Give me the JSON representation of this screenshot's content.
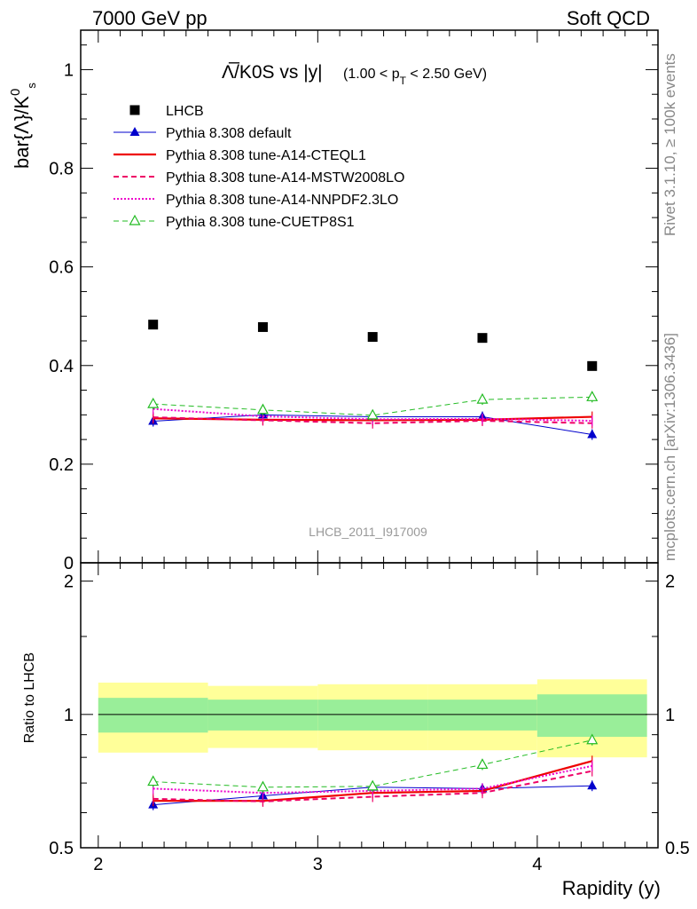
{
  "header": {
    "left": "7000 GeV pp",
    "right": "Soft QCD"
  },
  "side_labels": {
    "right_top": "Rivet 3.1.10, ≥ 100k events",
    "right_bottom": "mcplots.cern.ch [arXiv:1306.3436]"
  },
  "watermark": "LHCB_2011_I917009",
  "chart_data": {
    "type": "line",
    "title": {
      "main": "Λ̅/K0S vs |y|",
      "sub": "(1.00 < p",
      "sub_index": "T",
      "sub_tail": " < 2.50 GeV)"
    },
    "ylabel": "bar{Λ}/K",
    "ylabel_sup": "0",
    "ylabel_sub": "s",
    "xlabel": "Rapidity (y)",
    "ratio_ylabel": "Ratio to LHCB",
    "xlim": [
      1.92,
      4.55
    ],
    "ylim": [
      0,
      1.08
    ],
    "ratio_ylim": [
      0.5,
      2.2
    ],
    "x_ticks": [
      "2",
      "3",
      "4"
    ],
    "y_ticks": [
      "0",
      "0.2",
      "0.4",
      "0.6",
      "0.8",
      "1"
    ],
    "ratio_ticks": [
      "0.5",
      "1",
      "2"
    ],
    "ratio_ticks_right": [
      "0.5",
      "1",
      "2"
    ],
    "x": [
      2.25,
      2.75,
      3.25,
      3.75,
      4.25
    ],
    "bin_edges": [
      2.0,
      2.5,
      3.0,
      3.5,
      4.0,
      4.5
    ],
    "data": {
      "name": "LHCB",
      "values": [
        0.483,
        0.478,
        0.458,
        0.456,
        0.399
      ],
      "band_inner": [
        0.09,
        0.08,
        0.08,
        0.08,
        0.11
      ],
      "band_outer": [
        0.18,
        0.16,
        0.17,
        0.17,
        0.2
      ]
    },
    "series": [
      {
        "name": "Pythia 8.308 default",
        "color": "#0000cc",
        "style": "solid",
        "width": 1,
        "marker": "triangle-filled",
        "values": [
          0.287,
          0.3,
          0.296,
          0.296,
          0.26
        ],
        "ratio": [
          0.625,
          0.655,
          0.685,
          0.68,
          0.69
        ]
      },
      {
        "name": "Pythia 8.308 tune-A14-CTEQL1",
        "color": "#ee0000",
        "style": "solid",
        "width": 2.2,
        "marker": "none",
        "values": [
          0.293,
          0.29,
          0.289,
          0.29,
          0.296
        ],
        "ratio": [
          0.638,
          0.638,
          0.665,
          0.672,
          0.785
        ]
      },
      {
        "name": "Pythia 8.308 tune-A14-MSTW2008LO",
        "color": "#ee0066",
        "style": "dashed",
        "width": 2,
        "marker": "none",
        "values": [
          0.295,
          0.289,
          0.283,
          0.288,
          0.283
        ],
        "ratio": [
          0.645,
          0.636,
          0.652,
          0.665,
          0.745
        ]
      },
      {
        "name": "Pythia 8.308 tune-A14-NNPDF2.3LO",
        "color": "#ee00cc",
        "style": "dotted",
        "width": 2,
        "marker": "none",
        "values": [
          0.312,
          0.297,
          0.291,
          0.292,
          0.288
        ],
        "ratio": [
          0.68,
          0.665,
          0.672,
          0.68,
          0.765
        ]
      },
      {
        "name": "Pythia 8.308 tune-CUETP8S1",
        "color": "#22bb22",
        "style": "dashed",
        "width": 1,
        "marker": "triangle-open",
        "values": [
          0.322,
          0.31,
          0.299,
          0.331,
          0.336
        ],
        "ratio": [
          0.705,
          0.685,
          0.688,
          0.77,
          0.875
        ]
      }
    ],
    "colors": {
      "band_outer": "#ffff99",
      "band_inner": "#99ee99",
      "frame": "#000000",
      "side_text": "#888888"
    }
  }
}
